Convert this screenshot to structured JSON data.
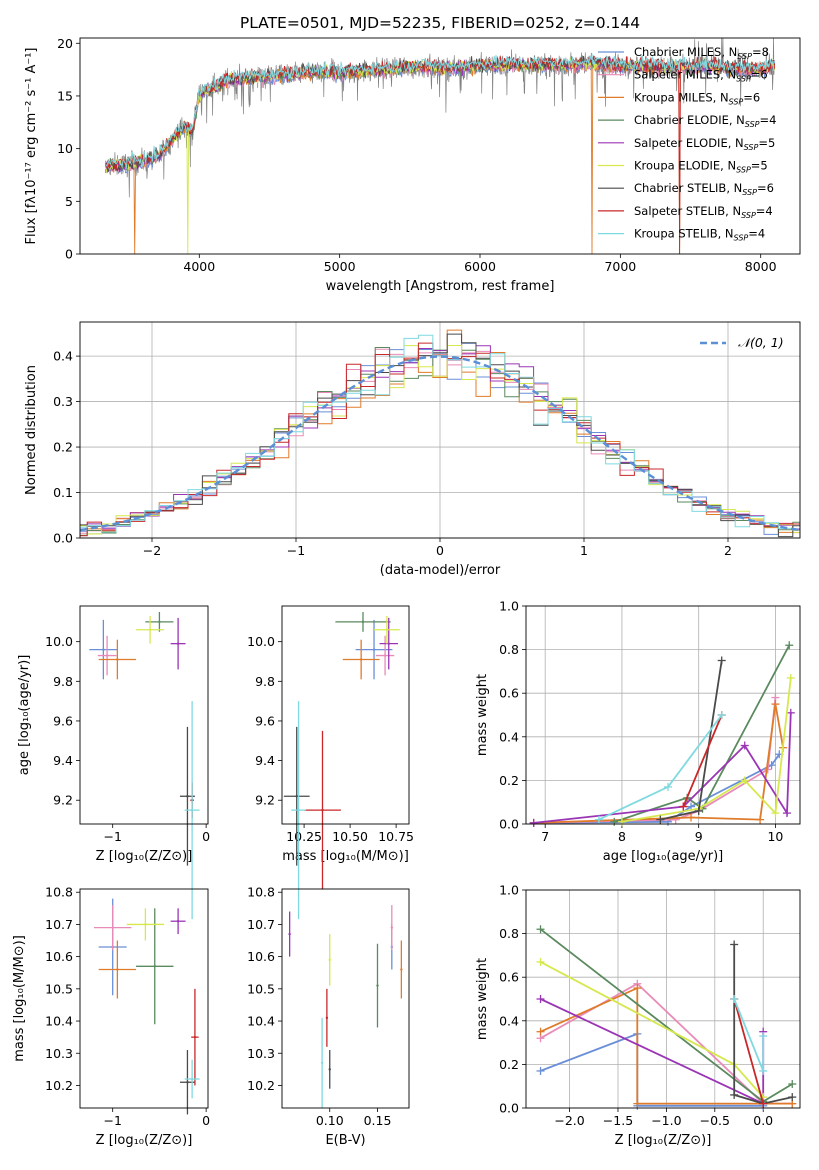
{
  "figure_title": "PLATE=0501, MJD=52235, FIBERID=0252, z=0.144",
  "colors": {
    "Chabrier MILES": "#6a8fd8",
    "Salpeter MILES": "#e98bb8",
    "Kroupa MILES": "#e07b2a",
    "Chabrier ELODIE": "#5a8a5e",
    "Salpeter ELODIE": "#9b35b5",
    "Kroupa ELODIE": "#d6e84e",
    "Chabrier STELIB": "#4a4a4a",
    "Salpeter STELIB": "#c8282a",
    "Kroupa STELIB": "#7fd9e0"
  },
  "chart_data": [
    {
      "id": "spectrum",
      "type": "line",
      "xlabel": "wavelength [Angstrom, rest frame]",
      "ylabel": "Flux [fλ10⁻¹⁷ erg cm⁻² s⁻¹ A⁻¹]",
      "xlim": [
        3150,
        8280
      ],
      "ylim": [
        0,
        20.5
      ],
      "xticks": [
        4000,
        5000,
        6000,
        7000,
        8000
      ],
      "yticks": [
        0,
        5,
        10,
        15,
        20
      ],
      "grid": false,
      "legend_position": "top-right",
      "series": [
        {
          "name": "Chabrier MILES",
          "nssp": "8"
        },
        {
          "name": "Salpeter MILES",
          "nssp": "6"
        },
        {
          "name": "Kroupa MILES",
          "nssp": "6"
        },
        {
          "name": "Chabrier ELODIE",
          "nssp": "4"
        },
        {
          "name": "Salpeter ELODIE",
          "nssp": "5"
        },
        {
          "name": "Kroupa ELODIE",
          "nssp": "5"
        },
        {
          "name": "Chabrier STELIB",
          "nssp": "6"
        },
        {
          "name": "Salpeter STELIB",
          "nssp": "4"
        },
        {
          "name": "Kroupa STELIB",
          "nssp": "4"
        }
      ],
      "data_envelope": {
        "x": [
          3330,
          3400,
          3550,
          3700,
          3800,
          3900,
          3950,
          4000,
          4100,
          4200,
          4400,
          4600,
          4800,
          5000,
          5200,
          5400,
          5600,
          5800,
          6000,
          6200,
          6400,
          6600,
          6800,
          7000,
          7200,
          7400,
          7600,
          7800,
          8000,
          8100
        ],
        "y": [
          8.3,
          8.4,
          8.6,
          9.2,
          10.8,
          12.2,
          11.5,
          15.2,
          15.8,
          16.5,
          16.8,
          17.0,
          17.3,
          17.2,
          17.4,
          17.6,
          17.8,
          17.6,
          17.9,
          18.0,
          18.0,
          17.9,
          18.2,
          17.8,
          17.9,
          17.7,
          17.9,
          17.6,
          17.5,
          18.0
        ]
      },
      "drops_to_zero": [
        {
          "model": "Kroupa MILES",
          "at": [
            3540,
            6800,
            7420
          ]
        },
        {
          "model": "Kroupa ELODIE",
          "at": [
            3920
          ]
        },
        {
          "model": "Salpeter STELIB",
          "at": [
            7420
          ]
        }
      ]
    },
    {
      "id": "residual-histogram",
      "type": "step-histogram",
      "xlabel": "(data-model)/error",
      "ylabel": "Normed distribution",
      "xlim": [
        -2.5,
        2.5
      ],
      "ylim": [
        0,
        0.475
      ],
      "xticks": [
        -2,
        -1,
        0,
        1,
        2
      ],
      "yticks": [
        0.0,
        0.1,
        0.2,
        0.3,
        0.4
      ],
      "grid": true,
      "legend_position": "top-right",
      "reference_curve": {
        "label": "𝒩(0, 1)",
        "mean": 0,
        "sigma": 1
      },
      "bin_width": 0.1
    },
    {
      "id": "age-vs-Z",
      "type": "errorbar",
      "xlabel": "Z [log₁₀(Z/Z⊙)]",
      "ylabel": "age  [log₁₀(age/yr)]",
      "xlim": [
        -1.35,
        0.02
      ],
      "ylim": [
        9.08,
        10.18
      ],
      "xticks": [
        -1,
        0
      ],
      "yticks": [
        9.2,
        9.4,
        9.6,
        9.8,
        10.0
      ],
      "points": [
        {
          "model": "Chabrier MILES",
          "x": -1.1,
          "y": 9.96,
          "xerr": 0.15,
          "yerr": 0.15
        },
        {
          "model": "Salpeter MILES",
          "x": -1.06,
          "y": 9.93,
          "xerr": 0.1,
          "yerr": 0.1
        },
        {
          "model": "Kroupa MILES",
          "x": -0.95,
          "y": 9.91,
          "xerr": 0.2,
          "yerr": 0.1
        },
        {
          "model": "Chabrier ELODIE",
          "x": -0.5,
          "y": 10.1,
          "xerr": 0.15,
          "yerr": 0.05
        },
        {
          "model": "Salpeter ELODIE",
          "x": -0.3,
          "y": 9.99,
          "xerr": 0.08,
          "yerr": 0.13
        },
        {
          "model": "Kroupa ELODIE",
          "x": -0.6,
          "y": 10.06,
          "xerr": 0.15,
          "yerr": 0.07
        },
        {
          "model": "Chabrier STELIB",
          "x": -0.2,
          "y": 9.22,
          "xerr": 0.08,
          "yerr": 0.35
        },
        {
          "model": "Salpeter STELIB",
          "x": -0.15,
          "y": 9.2,
          "xerr": 0.02,
          "yerr": 0.09
        },
        {
          "model": "Kroupa STELIB",
          "x": -0.15,
          "y": 9.15,
          "xerr": 0.08,
          "yerr": 0.55
        }
      ]
    },
    {
      "id": "age-vs-mass",
      "type": "errorbar",
      "xlabel": "mass [log₁₀(M/M⊙)]",
      "ylabel": "",
      "xlim": [
        10.13,
        10.82
      ],
      "ylim": [
        9.08,
        10.18
      ],
      "xticks": [
        10.25,
        10.5,
        10.75
      ],
      "yticks": [
        9.2,
        9.4,
        9.6,
        9.8,
        10.0
      ],
      "points": [
        {
          "model": "Chabrier MILES",
          "x": 10.63,
          "y": 9.96,
          "xerr": 0.1,
          "yerr": 0.15
        },
        {
          "model": "Salpeter MILES",
          "x": 10.69,
          "y": 9.93,
          "xerr": 0.05,
          "yerr": 0.1
        },
        {
          "model": "Kroupa MILES",
          "x": 10.56,
          "y": 9.91,
          "xerr": 0.1,
          "yerr": 0.1
        },
        {
          "model": "Chabrier ELODIE",
          "x": 10.57,
          "y": 10.1,
          "xerr": 0.15,
          "yerr": 0.05
        },
        {
          "model": "Salpeter ELODIE",
          "x": 10.71,
          "y": 9.99,
          "xerr": 0.05,
          "yerr": 0.13
        },
        {
          "model": "Kroupa ELODIE",
          "x": 10.7,
          "y": 10.06,
          "xerr": 0.07,
          "yerr": 0.07
        },
        {
          "model": "Chabrier STELIB",
          "x": 10.21,
          "y": 9.22,
          "xerr": 0.07,
          "yerr": 0.35
        },
        {
          "model": "Salpeter STELIB",
          "x": 10.35,
          "y": 9.15,
          "xerr": 0.1,
          "yerr": 0.4
        },
        {
          "model": "Kroupa STELIB",
          "x": 10.22,
          "y": 9.15,
          "xerr": 0.04,
          "yerr": 0.55
        }
      ]
    },
    {
      "id": "massweight-vs-age",
      "type": "line",
      "xlabel": "age  [log₁₀(age/yr)]",
      "ylabel": "mass weight",
      "xlim": [
        6.75,
        10.32
      ],
      "ylim": [
        0,
        1.0
      ],
      "xticks": [
        7,
        8,
        9,
        10
      ],
      "yticks": [
        0.0,
        0.2,
        0.4,
        0.6,
        0.8,
        1.0
      ],
      "grid": true,
      "series": [
        {
          "model": "Chabrier MILES",
          "x": [
            6.85,
            8.6,
            8.9,
            9.95,
            10.05
          ],
          "y": [
            0.005,
            0.01,
            0.08,
            0.27,
            0.32
          ]
        },
        {
          "model": "Salpeter MILES",
          "x": [
            6.85,
            8.7,
            9.0,
            9.9,
            10.0
          ],
          "y": [
            0.005,
            0.02,
            0.06,
            0.25,
            0.58
          ]
        },
        {
          "model": "Kroupa MILES",
          "x": [
            6.85,
            8.9,
            9.8,
            10.0,
            10.1
          ],
          "y": [
            0.005,
            0.03,
            0.02,
            0.55,
            0.35
          ]
        },
        {
          "model": "Chabrier ELODIE",
          "x": [
            7.9,
            8.85,
            9.05,
            10.18
          ],
          "y": [
            0.01,
            0.12,
            0.07,
            0.82
          ]
        },
        {
          "model": "Salpeter ELODIE",
          "x": [
            6.85,
            8.8,
            9.6,
            10.15,
            10.2
          ],
          "y": [
            0.005,
            0.08,
            0.36,
            0.05,
            0.51
          ]
        },
        {
          "model": "Kroupa ELODIE",
          "x": [
            8.0,
            9.0,
            9.6,
            10.0,
            10.2
          ],
          "y": [
            0.01,
            0.07,
            0.2,
            0.05,
            0.67
          ]
        },
        {
          "model": "Chabrier STELIB",
          "x": [
            8.5,
            9.0,
            9.3
          ],
          "y": [
            0.02,
            0.06,
            0.75
          ]
        },
        {
          "model": "Salpeter STELIB",
          "x": [
            8.8,
            9.3
          ],
          "y": [
            0.08,
            0.5
          ]
        },
        {
          "model": "Kroupa STELIB",
          "x": [
            7.7,
            8.6,
            9.3
          ],
          "y": [
            0.02,
            0.17,
            0.5
          ]
        }
      ]
    },
    {
      "id": "mass-vs-Z",
      "type": "errorbar",
      "xlabel": "Z [log₁₀(Z/Z⊙)]",
      "ylabel": "mass [log₁₀(M/M⊙)]",
      "xlim": [
        -1.35,
        0.02
      ],
      "ylim": [
        10.13,
        10.81
      ],
      "xticks": [
        -1,
        0
      ],
      "yticks": [
        10.2,
        10.3,
        10.4,
        10.5,
        10.6,
        10.7,
        10.8
      ],
      "points": [
        {
          "model": "Chabrier MILES",
          "x": -1.0,
          "y": 10.63,
          "xerr": 0.15,
          "yerr": 0.15
        },
        {
          "model": "Salpeter MILES",
          "x": -1.0,
          "y": 10.69,
          "xerr": 0.2,
          "yerr": 0.07
        },
        {
          "model": "Kroupa MILES",
          "x": -0.95,
          "y": 10.56,
          "xerr": 0.2,
          "yerr": 0.09
        },
        {
          "model": "Chabrier ELODIE",
          "x": -0.55,
          "y": 10.57,
          "xerr": 0.2,
          "yerr": 0.18
        },
        {
          "model": "Salpeter ELODIE",
          "x": -0.3,
          "y": 10.71,
          "xerr": 0.08,
          "yerr": 0.04
        },
        {
          "model": "Kroupa ELODIE",
          "x": -0.65,
          "y": 10.7,
          "xerr": 0.2,
          "yerr": 0.05
        },
        {
          "model": "Chabrier STELIB",
          "x": -0.2,
          "y": 10.21,
          "xerr": 0.08,
          "yerr": 0.1
        },
        {
          "model": "Salpeter STELIB",
          "x": -0.12,
          "y": 10.35,
          "xerr": 0.04,
          "yerr": 0.15
        },
        {
          "model": "Kroupa STELIB",
          "x": -0.15,
          "y": 10.22,
          "xerr": 0.08,
          "yerr": 0.06
        }
      ]
    },
    {
      "id": "mass-vs-ebv",
      "type": "errorbar",
      "xlabel": "E(B-V)",
      "ylabel": "",
      "xlim": [
        0.05,
        0.183
      ],
      "ylim": [
        10.13,
        10.81
      ],
      "xticks": [
        0.1,
        0.15
      ],
      "yticks": [
        10.2,
        10.3,
        10.4,
        10.5,
        10.6,
        10.7,
        10.8
      ],
      "points": [
        {
          "model": "Chabrier MILES",
          "x": 0.165,
          "y": 10.63,
          "xerr": 0,
          "yerr": 0.07
        },
        {
          "model": "Salpeter MILES",
          "x": 0.165,
          "y": 10.69,
          "xerr": 0,
          "yerr": 0.07
        },
        {
          "model": "Kroupa MILES",
          "x": 0.175,
          "y": 10.56,
          "xerr": 0,
          "yerr": 0.09
        },
        {
          "model": "Chabrier ELODIE",
          "x": 0.15,
          "y": 10.51,
          "xerr": 0,
          "yerr": 0.13
        },
        {
          "model": "Salpeter ELODIE",
          "x": 0.058,
          "y": 10.67,
          "xerr": 0,
          "yerr": 0.07
        },
        {
          "model": "Kroupa ELODIE",
          "x": 0.1,
          "y": 10.59,
          "xerr": 0,
          "yerr": 0.08
        },
        {
          "model": "Chabrier STELIB",
          "x": 0.1,
          "y": 10.25,
          "xerr": 0,
          "yerr": 0.06
        },
        {
          "model": "Salpeter STELIB",
          "x": 0.097,
          "y": 10.41,
          "xerr": 0,
          "yerr": 0.09
        },
        {
          "model": "Kroupa STELIB",
          "x": 0.092,
          "y": 10.27,
          "xerr": 0,
          "yerr": 0.14
        }
      ]
    },
    {
      "id": "massweight-vs-Z",
      "type": "line",
      "xlabel": "Z [log₁₀(Z/Z⊙)]",
      "ylabel": "mass weight",
      "xlim": [
        -2.45,
        0.38
      ],
      "ylim": [
        0,
        1.0
      ],
      "xticks": [
        -2.0,
        -1.5,
        -1.0,
        -0.5,
        0.0
      ],
      "yticks": [
        0.0,
        0.2,
        0.4,
        0.6,
        0.8,
        1.0
      ],
      "grid": true,
      "series": [
        {
          "model": "Chabrier MILES",
          "x": [
            -2.3,
            -1.3,
            -1.3,
            0.0
          ],
          "y": [
            0.17,
            0.34,
            0.01,
            0.01
          ]
        },
        {
          "model": "Salpeter MILES",
          "x": [
            -2.3,
            -1.3,
            0.0,
            0.3
          ],
          "y": [
            0.32,
            0.57,
            0.02,
            0.02
          ]
        },
        {
          "model": "Kroupa MILES",
          "x": [
            -2.3,
            -1.3,
            -1.3,
            0.0,
            0.3
          ],
          "y": [
            0.35,
            0.55,
            0.02,
            0.02,
            0.02
          ]
        },
        {
          "model": "Chabrier ELODIE",
          "x": [
            -2.3,
            0.0,
            0.3
          ],
          "y": [
            0.82,
            0.03,
            0.11
          ]
        },
        {
          "model": "Salpeter ELODIE",
          "x": [
            -2.3,
            0.0,
            0.0
          ],
          "y": [
            0.5,
            0.02,
            0.35
          ]
        },
        {
          "model": "Kroupa ELODIE",
          "x": [
            -2.3,
            -0.3,
            0.0
          ],
          "y": [
            0.67,
            0.2,
            0.05
          ]
        },
        {
          "model": "Chabrier STELIB",
          "x": [
            -0.3,
            -0.3,
            0.0,
            0.3
          ],
          "y": [
            0.75,
            0.06,
            0.02,
            0.05
          ]
        },
        {
          "model": "Salpeter STELIB",
          "x": [
            -0.3,
            0.0
          ],
          "y": [
            0.5,
            0.02
          ]
        },
        {
          "model": "Kroupa STELIB",
          "x": [
            -0.3,
            0.0,
            0.0
          ],
          "y": [
            0.5,
            0.17,
            0.33
          ]
        }
      ]
    }
  ]
}
